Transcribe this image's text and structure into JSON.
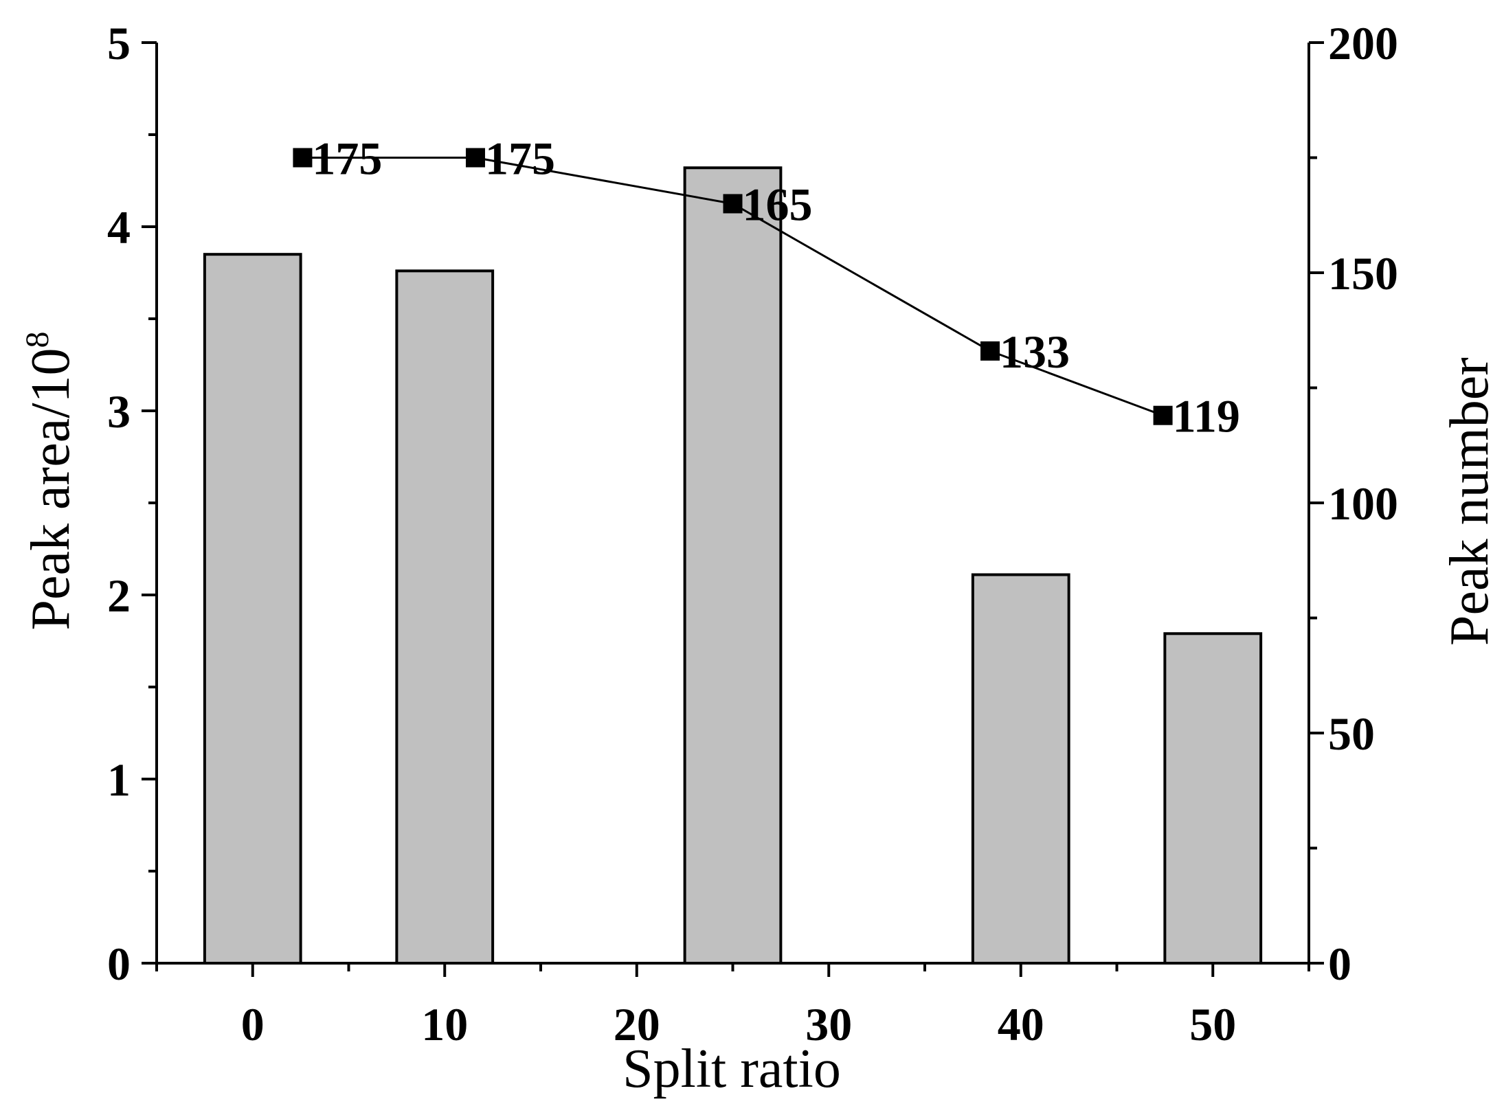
{
  "chart_data": {
    "type": "bar",
    "x_categories": [
      0,
      10,
      25,
      40,
      50
    ],
    "x_ticks": [
      0,
      10,
      20,
      30,
      40,
      50
    ],
    "xlim": [
      -5,
      55
    ],
    "xlabel": "Split ratio",
    "ylabel_left": "Peak area/10",
    "ylabel_left_superscript": "8",
    "ylabel_right": "Peak number",
    "ylim_left": [
      0,
      5
    ],
    "ylim_right": [
      0,
      200
    ],
    "yticks_left": [
      0,
      1,
      2,
      3,
      4,
      5
    ],
    "yticks_right": [
      0,
      50,
      100,
      150,
      200
    ],
    "grid": false,
    "series": [
      {
        "kind": "bar",
        "axis": "left",
        "x": [
          0,
          10,
          25,
          40,
          50
        ],
        "values": [
          3.85,
          3.76,
          4.32,
          2.11,
          1.79
        ],
        "color": "#c0c0c0"
      },
      {
        "kind": "line",
        "axis": "right",
        "x": [
          2.6,
          11.6,
          25,
          38.4,
          47.4
        ],
        "values": [
          175,
          175,
          165,
          133,
          119
        ],
        "labels": [
          "175",
          "175",
          "165",
          "133",
          "119"
        ],
        "color": "#000000",
        "marker": "square"
      }
    ]
  }
}
